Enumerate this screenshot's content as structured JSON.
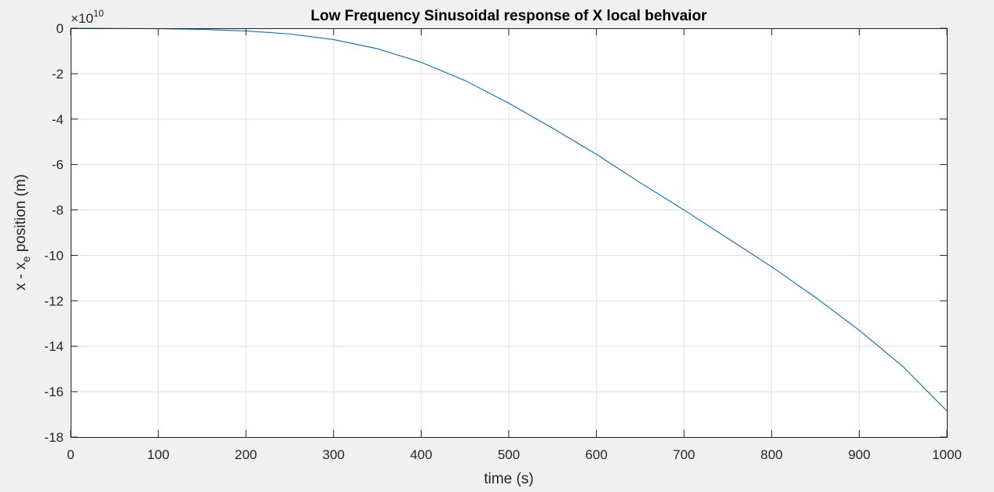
{
  "colors": {
    "background": "#f0f0f0",
    "plot_area": "#ffffff",
    "axis": "#262626",
    "grid": "#dfdfdf",
    "series": "#0072bd"
  },
  "chart_data": {
    "type": "line",
    "title": "Low Frequency Sinusoidal response of X local behvaior",
    "xlabel": "time (s)",
    "ylabel": {
      "main": "x - x",
      "subscript": "e",
      "suffix": " position (m)"
    },
    "y_exponent": {
      "base": "×10",
      "power": "10"
    },
    "xlim": [
      0,
      1000
    ],
    "ylim": [
      -18,
      0
    ],
    "xticks": [
      0,
      100,
      200,
      300,
      400,
      500,
      600,
      700,
      800,
      900,
      1000
    ],
    "yticks": [
      0,
      -2,
      -4,
      -6,
      -8,
      -10,
      -12,
      -14,
      -16,
      -18
    ],
    "grid": true,
    "series": [
      {
        "x": [
          0,
          50,
          100,
          150,
          200,
          250,
          300,
          350,
          400,
          450,
          500,
          550,
          600,
          650,
          700,
          750,
          800,
          850,
          900,
          950,
          1000
        ],
        "y": [
          0,
          -0.01,
          -0.02,
          -0.05,
          -0.12,
          -0.25,
          -0.5,
          -0.9,
          -1.5,
          -2.3,
          -3.3,
          -4.4,
          -5.55,
          -6.8,
          -8.0,
          -9.25,
          -10.5,
          -11.85,
          -13.3,
          -14.9,
          -16.85
        ]
      }
    ]
  }
}
